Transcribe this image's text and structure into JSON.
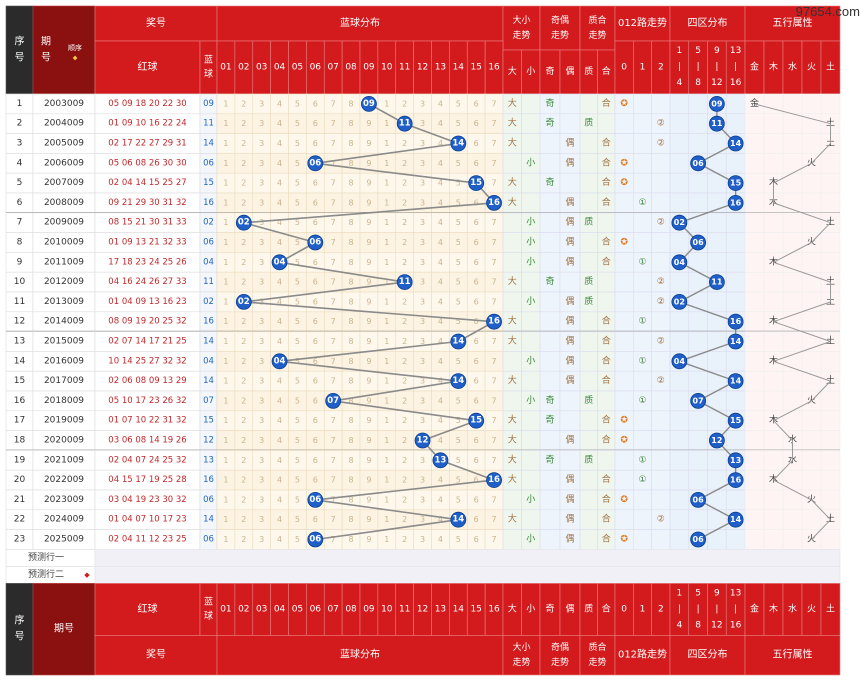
{
  "watermark": "97654.com",
  "header": {
    "seq": "序号",
    "issue": "期号",
    "sort": "顺序",
    "award": "奖号",
    "red": "红球",
    "blue": "蓝球",
    "blue_dist": "蓝球分布",
    "size": "大小走势",
    "odd_even": "奇偶走势",
    "prime": "质合走势",
    "route012": "012路走势",
    "zone4": "四区分布",
    "wuxing": "五行属性",
    "size_cols": [
      "大",
      "小"
    ],
    "oe_cols": [
      "奇",
      "偶"
    ],
    "prime_cols": [
      "质",
      "合"
    ],
    "route_cols": [
      "0",
      "1",
      "2"
    ],
    "zone_cols": [
      [
        "1",
        "|",
        "4"
      ],
      [
        "5",
        "|",
        "8"
      ],
      [
        "9",
        "|",
        "12"
      ],
      [
        "13",
        "|",
        "16"
      ]
    ],
    "wx_cols": [
      "金",
      "木",
      "水",
      "火",
      "土"
    ],
    "blue_nums": [
      "01",
      "02",
      "03",
      "04",
      "05",
      "06",
      "07",
      "08",
      "09",
      "10",
      "11",
      "12",
      "13",
      "14",
      "15",
      "16"
    ]
  },
  "predict_rows": [
    "预测行一",
    "预测行二"
  ],
  "chart_data": {
    "type": "table",
    "columns": [
      "序号",
      "期号",
      "红球",
      "蓝球"
    ],
    "rows": [
      {
        "seq": "1",
        "issue": "2003009",
        "red": "05 09 18 20 22 30",
        "blue": "09",
        "blue_val": 9,
        "size": "大",
        "oe": "奇",
        "prime": "合",
        "route": 0,
        "zone": 3,
        "wx": "金"
      },
      {
        "seq": "2",
        "issue": "2004009",
        "red": "01 09 10 16 22 24",
        "blue": "11",
        "blue_val": 11,
        "size": "大",
        "oe": "奇",
        "prime": "质",
        "route": 2,
        "zone": 3,
        "wx": "土"
      },
      {
        "seq": "3",
        "issue": "2005009",
        "red": "02 17 22 27 29 31",
        "blue": "14",
        "blue_val": 14,
        "size": "大",
        "oe": "偶",
        "prime": "合",
        "route": 2,
        "zone": 4,
        "wx": "土"
      },
      {
        "seq": "4",
        "issue": "2006009",
        "red": "05 06 08 26 30 30",
        "blue": "06",
        "blue_val": 6,
        "size": "小",
        "oe": "偶",
        "prime": "合",
        "route": 0,
        "zone": 2,
        "wx": "火"
      },
      {
        "seq": "5",
        "issue": "2007009",
        "red": "02 04 14 15 25 27",
        "blue": "15",
        "blue_val": 15,
        "size": "大",
        "oe": "奇",
        "prime": "合",
        "route": 0,
        "zone": 4,
        "wx": "木"
      },
      {
        "seq": "6",
        "issue": "2008009",
        "red": "09 21 29 30 31 32",
        "blue": "16",
        "blue_val": 16,
        "size": "大",
        "oe": "偶",
        "prime": "合",
        "route": 1,
        "zone": 4,
        "wx": "木"
      },
      {
        "seq": "7",
        "issue": "2009009",
        "red": "08 15 21 30 31 33",
        "blue": "02",
        "blue_val": 2,
        "size": "小",
        "oe": "偶",
        "prime": "质",
        "route": 2,
        "zone": 1,
        "wx": "土"
      },
      {
        "seq": "8",
        "issue": "2010009",
        "red": "01 09 13 21 32 33",
        "blue": "06",
        "blue_val": 6,
        "size": "小",
        "oe": "偶",
        "prime": "合",
        "route": 0,
        "zone": 2,
        "wx": "火"
      },
      {
        "seq": "9",
        "issue": "2011009",
        "red": "17 18 23 24 25 26",
        "blue": "04",
        "blue_val": 4,
        "size": "小",
        "oe": "偶",
        "prime": "合",
        "route": 1,
        "zone": 1,
        "wx": "木"
      },
      {
        "seq": "10",
        "issue": "2012009",
        "red": "04 16 24 26 27 33",
        "blue": "11",
        "blue_val": 11,
        "size": "大",
        "oe": "奇",
        "prime": "质",
        "route": 2,
        "zone": 3,
        "wx": "土"
      },
      {
        "seq": "11",
        "issue": "2013009",
        "red": "01 04 09 13 16 23",
        "blue": "02",
        "blue_val": 2,
        "size": "小",
        "oe": "偶",
        "prime": "质",
        "route": 2,
        "zone": 1,
        "wx": "土"
      },
      {
        "seq": "12",
        "issue": "2014009",
        "red": "08 09 19 20 25 32",
        "blue": "16",
        "blue_val": 16,
        "size": "大",
        "oe": "偶",
        "prime": "合",
        "route": 1,
        "zone": 4,
        "wx": "木"
      },
      {
        "seq": "13",
        "issue": "2015009",
        "red": "02 07 14 17 21 25",
        "blue": "14",
        "blue_val": 14,
        "size": "大",
        "oe": "偶",
        "prime": "合",
        "route": 2,
        "zone": 4,
        "wx": "土"
      },
      {
        "seq": "14",
        "issue": "2016009",
        "red": "10 14 25 27 32 32",
        "blue": "04",
        "blue_val": 4,
        "size": "小",
        "oe": "偶",
        "prime": "合",
        "route": 1,
        "zone": 1,
        "wx": "木"
      },
      {
        "seq": "15",
        "issue": "2017009",
        "red": "02 06 08 09 13 29",
        "blue": "14",
        "blue_val": 14,
        "size": "大",
        "oe": "偶",
        "prime": "合",
        "route": 2,
        "zone": 4,
        "wx": "土"
      },
      {
        "seq": "16",
        "issue": "2018009",
        "red": "05 10 17 23 26 32",
        "blue": "07",
        "blue_val": 7,
        "size": "小",
        "oe": "奇",
        "prime": "质",
        "route": 1,
        "zone": 2,
        "wx": "火"
      },
      {
        "seq": "17",
        "issue": "2019009",
        "red": "01 07 10 22 31 32",
        "blue": "15",
        "blue_val": 15,
        "size": "大",
        "oe": "奇",
        "prime": "合",
        "route": 0,
        "zone": 4,
        "wx": "木"
      },
      {
        "seq": "18",
        "issue": "2020009",
        "red": "03 06 08 14 19 26",
        "blue": "12",
        "blue_val": 12,
        "size": "大",
        "oe": "偶",
        "prime": "合",
        "route": 0,
        "zone": 3,
        "wx": "水"
      },
      {
        "seq": "19",
        "issue": "2021009",
        "red": "02 04 07 24 25 32",
        "blue": "13",
        "blue_val": 13,
        "size": "大",
        "oe": "奇",
        "prime": "质",
        "route": 1,
        "zone": 4,
        "wx": "水"
      },
      {
        "seq": "20",
        "issue": "2022009",
        "red": "04 15 17 19 25 28",
        "blue": "16",
        "blue_val": 16,
        "size": "大",
        "oe": "偶",
        "prime": "合",
        "route": 1,
        "zone": 4,
        "wx": "木"
      },
      {
        "seq": "21",
        "issue": "2023009",
        "red": "03 04 19 23 30 32",
        "blue": "06",
        "blue_val": 6,
        "size": "小",
        "oe": "偶",
        "prime": "合",
        "route": 0,
        "zone": 2,
        "wx": "火"
      },
      {
        "seq": "22",
        "issue": "2024009",
        "red": "01 04 07 10 17 23",
        "blue": "14",
        "blue_val": 14,
        "size": "大",
        "oe": "偶",
        "prime": "合",
        "route": 2,
        "zone": 4,
        "wx": "土"
      },
      {
        "seq": "23",
        "issue": "2025009",
        "red": "02 04 11 12 23 25",
        "blue": "06",
        "blue_val": 6,
        "size": "小",
        "oe": "偶",
        "prime": "合",
        "route": 0,
        "zone": 2,
        "wx": "火"
      }
    ]
  }
}
